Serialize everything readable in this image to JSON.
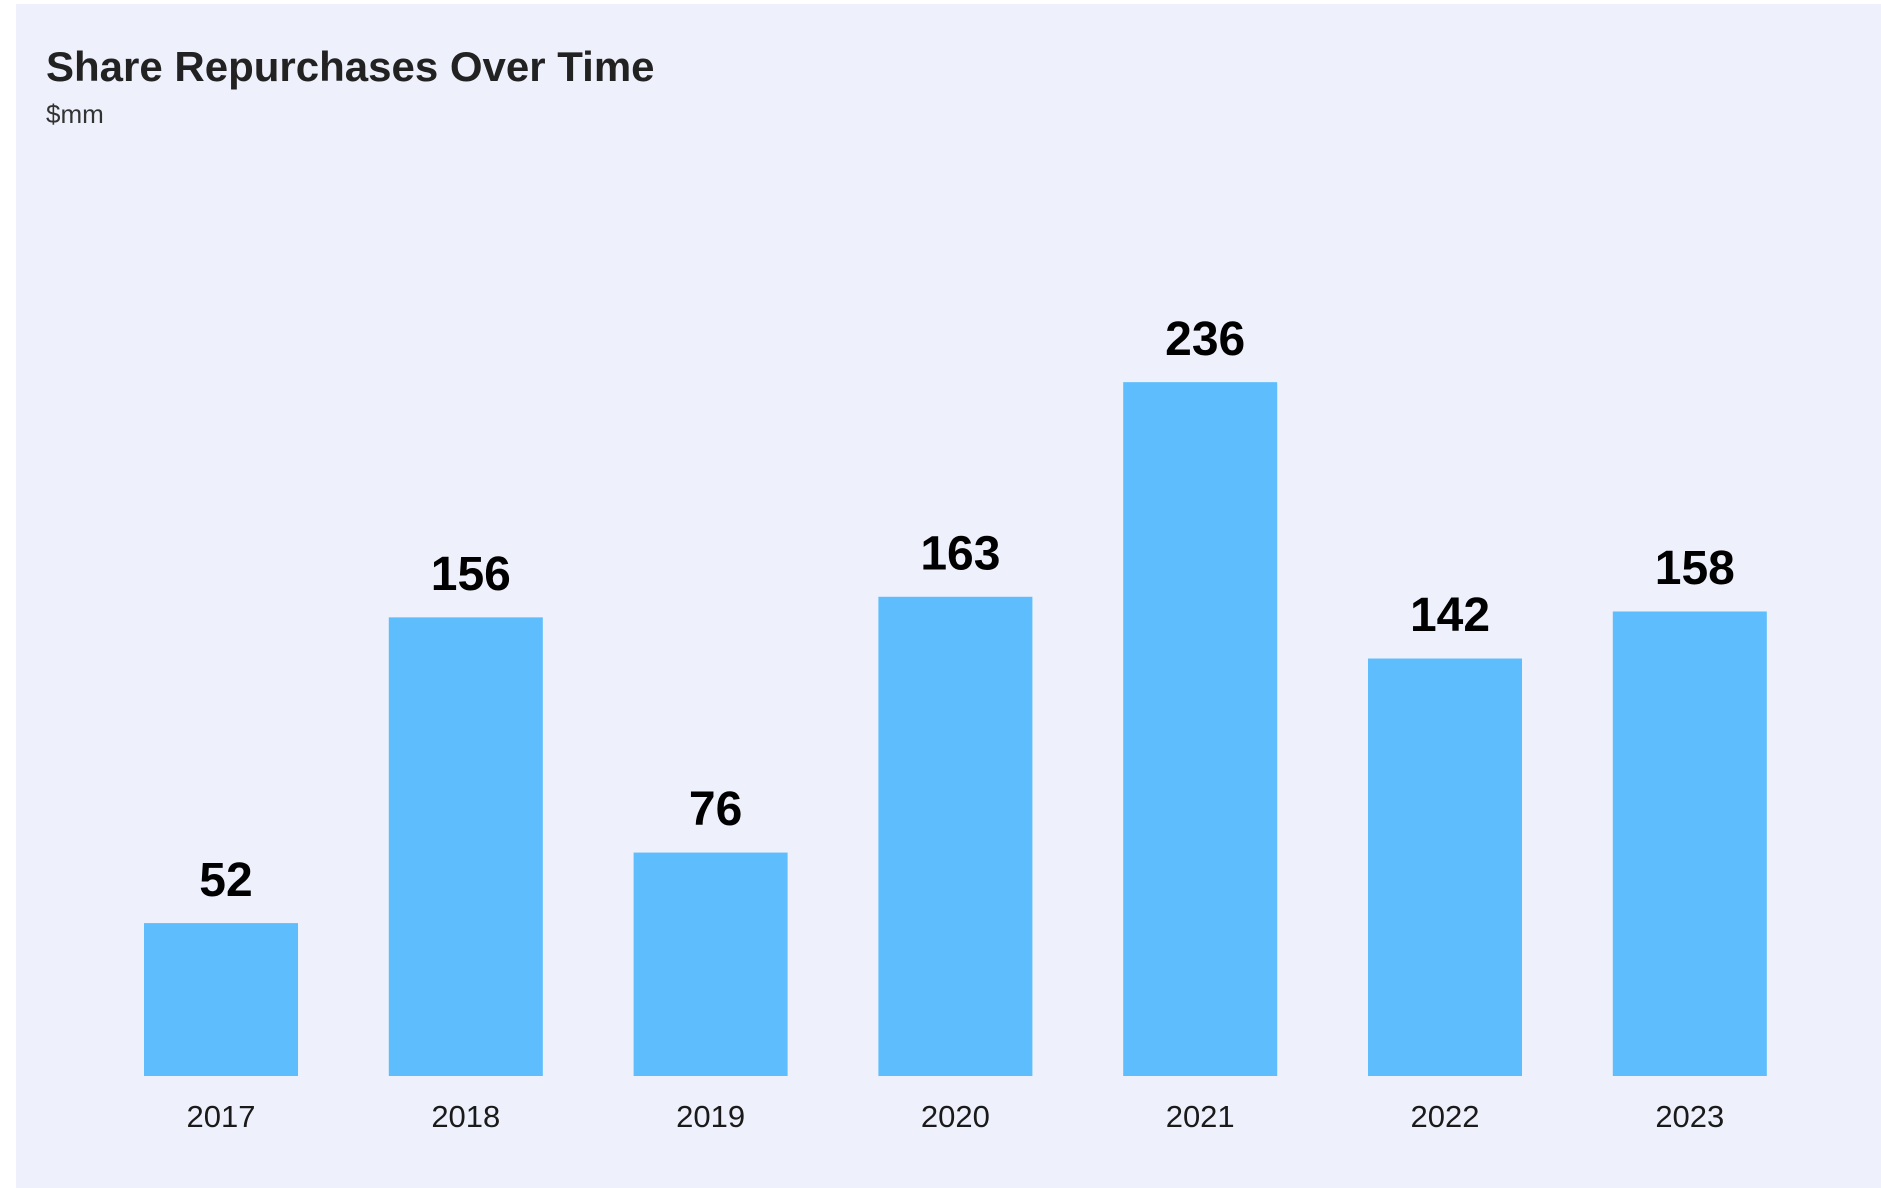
{
  "chart_data": {
    "type": "bar",
    "title": "Share Repurchases Over Time",
    "subtitle": "$mm",
    "categories": [
      "2017",
      "2018",
      "2019",
      "2020",
      "2021",
      "2022",
      "2023"
    ],
    "values": [
      52,
      156,
      76,
      163,
      236,
      142,
      158
    ],
    "color": "#5dbdfd"
  }
}
